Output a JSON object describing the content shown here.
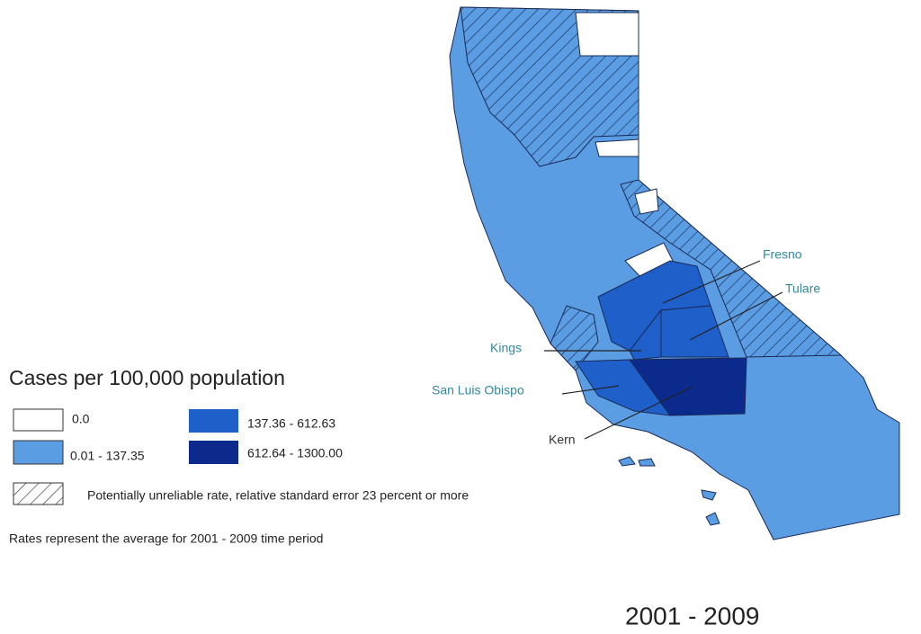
{
  "legend": {
    "title": "Cases per 100,000 population",
    "items": [
      {
        "label": "0.0",
        "color": "#ffffff"
      },
      {
        "label": "0.01 - 137.35",
        "color": "#5b9de3"
      },
      {
        "label": "137.36 - 612.63",
        "color": "#1f5fc9"
      },
      {
        "label": "612.64 - 1300.00",
        "color": "#0b2a8c"
      }
    ],
    "hatch_label": "Potentially unreliable rate, relative standard error 23 percent or more"
  },
  "note": "Rates represent the average for 2001 - 2009 time period",
  "period": "2001 - 2009",
  "counties": [
    {
      "label": "Fresno"
    },
    {
      "label": "Tulare"
    },
    {
      "label": "Kings"
    },
    {
      "label": "San Luis Obispo"
    },
    {
      "label": "Kern"
    }
  ]
}
